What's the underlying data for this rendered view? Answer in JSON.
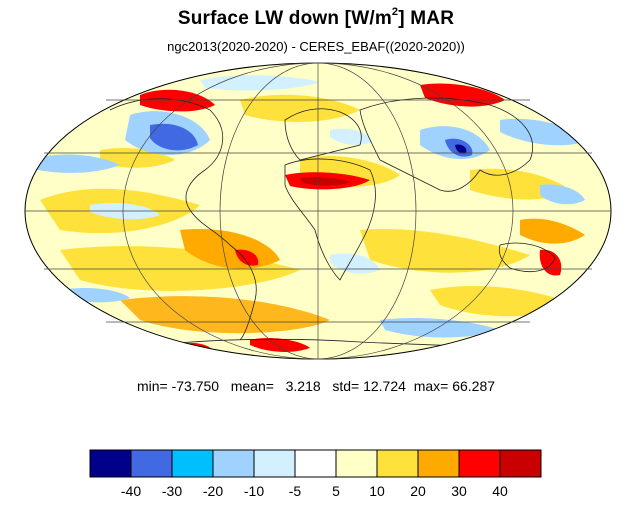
{
  "title": {
    "main": "Surface LW down [W/m",
    "superscript": "2",
    "after_sup": "]  MAR"
  },
  "subtitle": "ngc2013(2020-2020) - CERES_EBAF((2020-2020))",
  "stats": {
    "min_label": "min=",
    "min": "-73.750",
    "mean_label": "mean=",
    "mean": "3.218",
    "std_label": "std=",
    "std": "12.724",
    "max_label": "max=",
    "max": "66.287"
  },
  "colorbar": {
    "colors": [
      "#00008b",
      "#4169e1",
      "#00bfff",
      "#a0d2ff",
      "#d2f0ff",
      "#ffffff",
      "#ffffc8",
      "#ffe13c",
      "#ffaa00",
      "#ff0000",
      "#c80000"
    ],
    "labels": [
      "-40",
      "-30",
      "-20",
      "-10",
      "-5",
      "5",
      "10",
      "20",
      "30",
      "40"
    ]
  },
  "map": {
    "projection": "mollweide",
    "ocean_background": "#ffffc8"
  }
}
